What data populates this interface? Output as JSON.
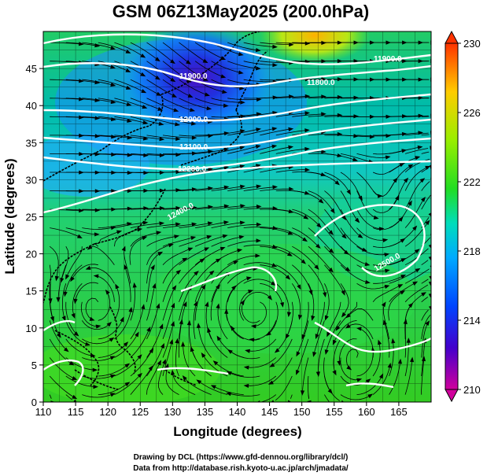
{
  "title": "GSM 06Z13May2025 (200.0hPa)",
  "xlabel": "Longitude (degrees)",
  "ylabel": "Latitude  (degrees)",
  "x_ticks": [
    "110",
    "115",
    "120",
    "125",
    "130",
    "135",
    "140",
    "145",
    "150",
    "155",
    "160",
    "165"
  ],
  "y_ticks": [
    "0",
    "5",
    "10",
    "15",
    "20",
    "25",
    "30",
    "35",
    "40",
    "45"
  ],
  "colorbar": {
    "ticks": [
      "230",
      "226",
      "222",
      "218",
      "214",
      "210"
    ],
    "colors": [
      "#cc0099",
      "#3300cc",
      "#0033ff",
      "#00aaff",
      "#00ddcc",
      "#33dd33",
      "#ccee00",
      "#ffcc00",
      "#ff4400"
    ]
  },
  "contour_labels": [
    "11900.0",
    "12000.0",
    "12100.0",
    "12200.0",
    "11800.0",
    "11900.0",
    "12400.0",
    "12500.0"
  ],
  "footer": {
    "line1": "Drawing by DCL (https://www.gfd-dennou.org/library/dcl/)",
    "line2": "Data from http://database.rish.kyoto-u.ac.jp/arch/jmadata/"
  },
  "chart_data": {
    "type": "heatmap",
    "title": "GSM 06Z13May2025 (200.0hPa)",
    "xlabel": "Longitude (degrees)",
    "ylabel": "Latitude  (degrees)",
    "xlim": [
      110,
      170
    ],
    "ylim": [
      0,
      50
    ],
    "colorbar_range": [
      210,
      230
    ],
    "colorbar_ticks": [
      230,
      226,
      222,
      218,
      214,
      210
    ],
    "contours": [
      {
        "label": "11900.0",
        "lon": 131,
        "lat": 45
      },
      {
        "label": "11800.0",
        "lon": 151,
        "lat": 43
      },
      {
        "label": "11900.0",
        "lon": 162,
        "lat": 46
      },
      {
        "label": "12000.0",
        "lon": 132,
        "lat": 39
      },
      {
        "label": "12100.0",
        "lon": 132,
        "lat": 35
      },
      {
        "label": "12200.0",
        "lon": 130,
        "lat": 32
      },
      {
        "label": "12400.0",
        "lon": 127,
        "lat": 25
      },
      {
        "label": "12500.0",
        "lon": 162,
        "lat": 18
      }
    ]
  }
}
